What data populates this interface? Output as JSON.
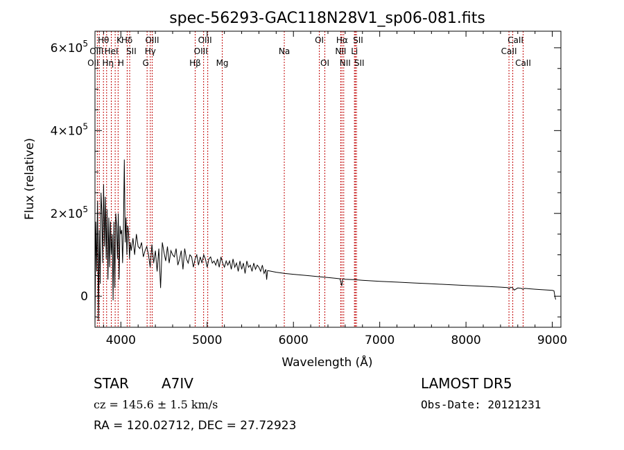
{
  "chart_data": {
    "type": "line",
    "title": "spec-56293-GAC118N28V1_sp06-081.fits",
    "xlabel": "Wavelength (Å)",
    "ylabel": "Flux (relative)",
    "xlim": [
      3700,
      9100
    ],
    "ylim": [
      -75000,
      640000
    ],
    "xticks": [
      {
        "value": 4000,
        "label": "4000"
      },
      {
        "value": 5000,
        "label": "5000"
      },
      {
        "value": 6000,
        "label": "6000"
      },
      {
        "value": 7000,
        "label": "7000"
      },
      {
        "value": 8000,
        "label": "8000"
      },
      {
        "value": 9000,
        "label": "9000"
      }
    ],
    "yticks": [
      {
        "value": 0,
        "label": "0",
        "exp": ""
      },
      {
        "value": 200000,
        "label": "2×10",
        "exp": "5"
      },
      {
        "value": 400000,
        "label": "4×10",
        "exp": "5"
      },
      {
        "value": 600000,
        "label": "6×10",
        "exp": "5"
      }
    ],
    "grid": false,
    "legend": "none",
    "line_color": "#000000",
    "marker_color": "#c00000",
    "spectrum": {
      "x": [
        3700,
        3710,
        3720,
        3730,
        3740,
        3750,
        3760,
        3770,
        3780,
        3790,
        3800,
        3810,
        3820,
        3830,
        3840,
        3850,
        3860,
        3870,
        3880,
        3890,
        3900,
        3910,
        3920,
        3930,
        3940,
        3950,
        3960,
        3970,
        3980,
        3990,
        4000,
        4010,
        4020,
        4030,
        4040,
        4050,
        4060,
        4070,
        4080,
        4090,
        4100,
        4110,
        4120,
        4140,
        4160,
        4180,
        4200,
        4220,
        4240,
        4260,
        4280,
        4300,
        4320,
        4340,
        4360,
        4380,
        4400,
        4420,
        4440,
        4460,
        4480,
        4500,
        4520,
        4540,
        4560,
        4580,
        4600,
        4620,
        4640,
        4660,
        4680,
        4700,
        4720,
        4740,
        4760,
        4780,
        4800,
        4820,
        4840,
        4860,
        4880,
        4900,
        4920,
        4940,
        4960,
        4980,
        5000,
        5020,
        5040,
        5060,
        5080,
        5100,
        5120,
        5140,
        5160,
        5180,
        5200,
        5220,
        5240,
        5260,
        5280,
        5300,
        5320,
        5340,
        5360,
        5380,
        5400,
        5420,
        5440,
        5460,
        5480,
        5500,
        5520,
        5540,
        5560,
        5580,
        5600,
        5620,
        5640,
        5660,
        5680,
        5690,
        5700,
        5800,
        5900,
        6000,
        6100,
        6200,
        6300,
        6400,
        6500,
        6540,
        6560,
        6570,
        6580,
        6600,
        6700,
        6800,
        7000,
        7200,
        7400,
        7600,
        7800,
        8000,
        8200,
        8400,
        8480,
        8500,
        8520,
        8540,
        8560,
        8600,
        8640,
        8660,
        8680,
        8800,
        9000,
        9020,
        9030,
        9040
      ],
      "y": [
        -75000,
        180000,
        60000,
        230000,
        -60000,
        160000,
        30000,
        250000,
        200000,
        80000,
        270000,
        120000,
        240000,
        90000,
        210000,
        40000,
        190000,
        70000,
        180000,
        100000,
        150000,
        -10000,
        180000,
        20000,
        200000,
        170000,
        90000,
        200000,
        40000,
        170000,
        150000,
        160000,
        80000,
        170000,
        330000,
        130000,
        190000,
        100000,
        170000,
        150000,
        90000,
        130000,
        110000,
        140000,
        100000,
        150000,
        120000,
        115000,
        130000,
        95000,
        110000,
        120000,
        100000,
        70000,
        125000,
        80000,
        110000,
        60000,
        115000,
        20000,
        130000,
        105000,
        85000,
        120000,
        80000,
        110000,
        100000,
        95000,
        115000,
        75000,
        90000,
        110000,
        65000,
        115000,
        90000,
        80000,
        100000,
        95000,
        70000,
        90000,
        100000,
        75000,
        95000,
        80000,
        100000,
        90000,
        70000,
        90000,
        95000,
        80000,
        85000,
        75000,
        90000,
        70000,
        95000,
        80000,
        70000,
        85000,
        75000,
        85000,
        65000,
        90000,
        70000,
        80000,
        60000,
        85000,
        65000,
        80000,
        55000,
        85000,
        70000,
        75000,
        60000,
        80000,
        65000,
        75000,
        70000,
        60000,
        75000,
        55000,
        65000,
        40000,
        62000,
        58000,
        55000,
        53000,
        51000,
        49000,
        47000,
        45000,
        43000,
        42000,
        25000,
        41000,
        42000,
        41000,
        40000,
        38500,
        36000,
        34000,
        32000,
        30000,
        28000,
        26000,
        24000,
        22000,
        21000,
        18000,
        22000,
        20000,
        15000,
        20000,
        19000,
        17000,
        19000,
        17000,
        14000,
        13000,
        0,
        -8000
      ]
    },
    "lines": [
      {
        "wl": 3727,
        "label": "OII",
        "row": 3,
        "dx": -6
      },
      {
        "wl": 3750,
        "label": "OIII",
        "row": 2,
        "dx": -4
      },
      {
        "wl": 3798,
        "label": "Hθ",
        "row": 1,
        "dx": 0
      },
      {
        "wl": 3835,
        "label": "Hη",
        "row": 3,
        "dx": 2
      },
      {
        "wl": 3889,
        "label": "HeI",
        "row": 2,
        "dx": 0
      },
      {
        "wl": 3934,
        "label": "K",
        "row": 1,
        "dx": 6
      },
      {
        "wl": 3968,
        "label": "H",
        "row": 3,
        "dx": 4
      },
      {
        "wl": 4102,
        "label": "Hδ",
        "row": 1,
        "dx": -4
      },
      {
        "wl": 4073,
        "label": "SII",
        "row": 2,
        "dx": 6
      },
      {
        "wl": 4304,
        "label": "G",
        "row": 3,
        "dx": -2
      },
      {
        "wl": 4341,
        "label": "Hγ",
        "row": 2,
        "dx": 0
      },
      {
        "wl": 4363,
        "label": "OIII",
        "row": 1,
        "dx": 0
      },
      {
        "wl": 4861,
        "label": "Hβ",
        "row": 3,
        "dx": 0
      },
      {
        "wl": 4959,
        "label": "OIII",
        "row": 2,
        "dx": -4
      },
      {
        "wl": 5007,
        "label": "OIII",
        "row": 1,
        "dx": -4
      },
      {
        "wl": 5175,
        "label": "Mg",
        "row": 3,
        "dx": 0
      },
      {
        "wl": 5894,
        "label": "Na",
        "row": 2,
        "dx": 0
      },
      {
        "wl": 6300,
        "label": "OI",
        "row": 1,
        "dx": 0
      },
      {
        "wl": 6364,
        "label": "OI",
        "row": 3,
        "dx": 0
      },
      {
        "wl": 6548,
        "label": "NII",
        "row": 2,
        "dx": 0
      },
      {
        "wl": 6563,
        "label": "Hα",
        "row": 1,
        "dx": 0
      },
      {
        "wl": 6583,
        "label": "NII",
        "row": 3,
        "dx": 2
      },
      {
        "wl": 6707,
        "label": "Li",
        "row": 2,
        "dx": 0
      },
      {
        "wl": 6717,
        "label": "SII",
        "row": 1,
        "dx": 4
      },
      {
        "wl": 6731,
        "label": "SII",
        "row": 3,
        "dx": 4
      },
      {
        "wl": 8498,
        "label": "CaII",
        "row": 2,
        "dx": 0
      },
      {
        "wl": 8542,
        "label": "CaII",
        "row": 1,
        "dx": 4
      },
      {
        "wl": 8662,
        "label": "CaII",
        "row": 3,
        "dx": 0
      }
    ]
  },
  "info": {
    "object_class": "STAR",
    "subclass": "A7IV",
    "survey": "LAMOST DR5",
    "redshift": "cz = 145.6 ± 1.5 km/s",
    "obs_date": "Obs-Date: 20121231",
    "coords": "RA = 120.02712, DEC =  27.72923"
  }
}
